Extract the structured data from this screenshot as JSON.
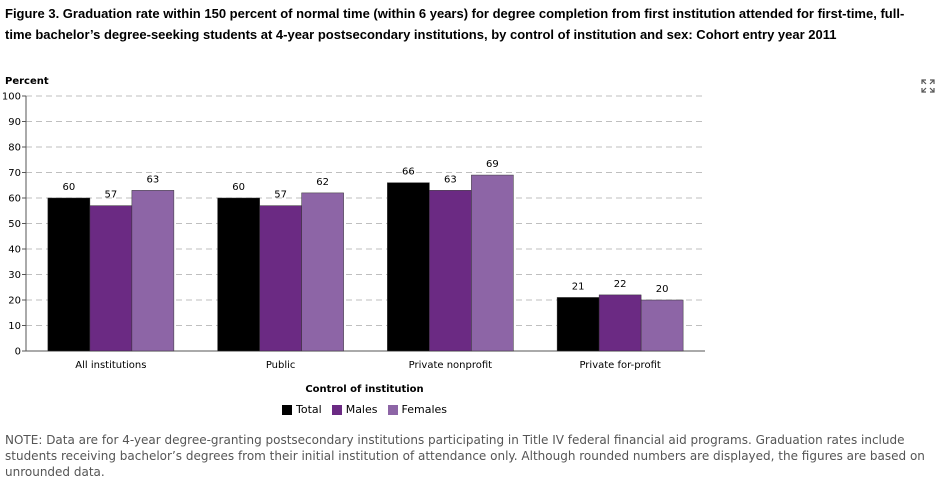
{
  "title": "Figure 3. Graduation rate within 150 percent of normal time (within 6 years) for degree completion from first institution attended for first-time, full-time bachelor’s degree-seeking students at 4-year postsecondary institutions, by control of institution and sex: Cohort entry year 2011",
  "note": "NOTE: Data are for 4-year degree-granting postsecondary institutions participating in Title IV federal financial aid programs. Graduation rates include students receiving bachelor’s degrees from their initial institution of attendance only. Although rounded numbers are displayed, the figures are based on unrounded data.",
  "chart_data": {
    "type": "bar",
    "ylabel": "Percent",
    "xlabel": "Control of institution",
    "ylim": [
      0,
      100
    ],
    "yticks": [
      0,
      10,
      20,
      30,
      40,
      50,
      60,
      70,
      80,
      90,
      100
    ],
    "grid": true,
    "legend_position": "bottom",
    "categories": [
      "All institutions",
      "Public",
      "Private nonprofit",
      "Private for-profit"
    ],
    "series": [
      {
        "name": "Total",
        "color": "#000000",
        "values": [
          60,
          60,
          66,
          21
        ]
      },
      {
        "name": "Males",
        "color": "#6b2a83",
        "values": [
          57,
          57,
          63,
          22
        ]
      },
      {
        "name": "Females",
        "color": "#8d65a6",
        "values": [
          63,
          62,
          69,
          20
        ]
      }
    ]
  },
  "icons": {
    "expand": "expand-icon"
  }
}
